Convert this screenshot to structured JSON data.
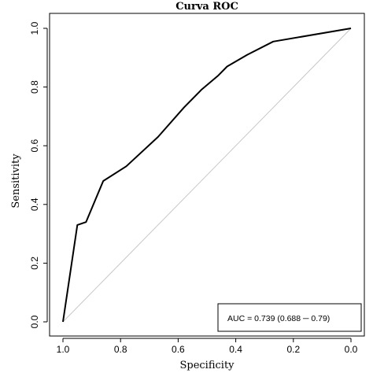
{
  "chart_data": {
    "type": "line",
    "title": "Curva ROC",
    "xlabel": "Specificity",
    "ylabel": "Sensitivity",
    "x_reversed": true,
    "xlim": [
      1.0,
      0.0
    ],
    "ylim": [
      0.0,
      1.0
    ],
    "x_ticks": [
      "1.0",
      "0.8",
      "0.6",
      "0.4",
      "0.2",
      "0.0"
    ],
    "y_ticks": [
      "0.0",
      "0.2",
      "0.4",
      "0.6",
      "0.8",
      "1.0"
    ],
    "grid": false,
    "series": [
      {
        "color": "#000000",
        "points": [
          {
            "x": 1.0,
            "y": 0.0
          },
          {
            "x": 0.95,
            "y": 0.33
          },
          {
            "x": 0.92,
            "y": 0.34
          },
          {
            "x": 0.86,
            "y": 0.48
          },
          {
            "x": 0.78,
            "y": 0.53
          },
          {
            "x": 0.67,
            "y": 0.63
          },
          {
            "x": 0.58,
            "y": 0.73
          },
          {
            "x": 0.52,
            "y": 0.79
          },
          {
            "x": 0.46,
            "y": 0.84
          },
          {
            "x": 0.43,
            "y": 0.87
          },
          {
            "x": 0.36,
            "y": 0.91
          },
          {
            "x": 0.27,
            "y": 0.955
          },
          {
            "x": 0.0,
            "y": 1.0
          }
        ]
      }
    ],
    "reference_line": {
      "color": "#c8c8c8",
      "from": {
        "x": 1.0,
        "y": 0.0
      },
      "to": {
        "x": 0.0,
        "y": 1.0
      }
    },
    "legend": {
      "text": "AUC = 0.739 (0.688 ─ 0.79)",
      "placement": "bottom-right"
    }
  }
}
